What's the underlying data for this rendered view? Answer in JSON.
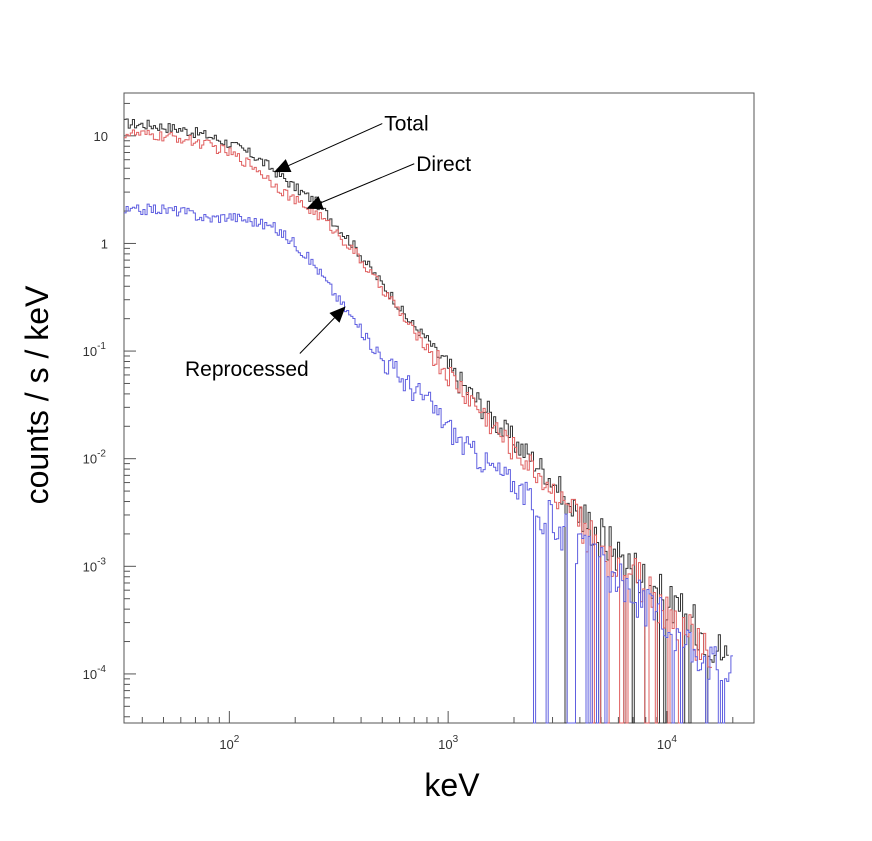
{
  "chart_data": {
    "type": "line",
    "title": "",
    "xlabel": "keV",
    "ylabel": "counts / s / keV",
    "x_scale": "log",
    "y_scale": "log",
    "xlim": [
      33,
      25000
    ],
    "ylim": [
      3.5e-05,
      25
    ],
    "grid": false,
    "x_ticks": [
      {
        "value": 100,
        "base": "10",
        "exp": "2"
      },
      {
        "value": 1000,
        "base": "10",
        "exp": "3"
      },
      {
        "value": 10000,
        "base": "10",
        "exp": "4"
      }
    ],
    "y_ticks": [
      {
        "value": 10,
        "base": "10",
        "exp": ""
      },
      {
        "value": 1,
        "base": "1",
        "exp": ""
      },
      {
        "value": 0.1,
        "base": "10",
        "exp": "-1"
      },
      {
        "value": 0.01,
        "base": "10",
        "exp": "-2"
      },
      {
        "value": 0.001,
        "base": "10",
        "exp": "-3"
      },
      {
        "value": 0.0001,
        "base": "10",
        "exp": "-4"
      }
    ],
    "series": [
      {
        "name": "Total",
        "color": "#333333",
        "x": [
          35,
          45,
          60,
          80,
          100,
          130,
          160,
          200,
          250,
          300,
          380,
          450,
          550,
          650,
          800,
          1000,
          1200,
          1500,
          1800,
          2200,
          2700,
          3300,
          4000,
          5000,
          6000,
          7500,
          9000,
          11000,
          13500,
          16000,
          19000
        ],
        "y": [
          13,
          12.5,
          11.5,
          10,
          8.5,
          6.5,
          4.8,
          3.3,
          2.4,
          1.6,
          0.9,
          0.55,
          0.33,
          0.2,
          0.13,
          0.07,
          0.045,
          0.028,
          0.018,
          0.012,
          0.008,
          0.005,
          0.003,
          0.002,
          0.0013,
          0.0009,
          0.0006,
          0.0004,
          0.00028,
          0.0002,
          0.00014
        ]
      },
      {
        "name": "Direct",
        "color": "#e06060",
        "x": [
          35,
          45,
          60,
          80,
          100,
          130,
          160,
          200,
          250,
          300,
          380,
          450,
          550,
          650,
          800,
          1000,
          1200,
          1500,
          1800,
          2200,
          2700,
          3300,
          4000,
          5000,
          6000,
          7500,
          9000,
          11000,
          13500,
          16000
        ],
        "y": [
          10.5,
          10,
          9.5,
          8.2,
          7,
          5.2,
          3.6,
          2.5,
          1.9,
          1.35,
          0.8,
          0.5,
          0.3,
          0.18,
          0.11,
          0.06,
          0.04,
          0.024,
          0.015,
          0.01,
          0.0065,
          0.004,
          0.0025,
          0.0016,
          0.001,
          0.0007,
          0.00045,
          0.0003,
          0.0002,
          0.00014
        ]
      },
      {
        "name": "Reprocessed",
        "color": "#6060e0",
        "x": [
          35,
          45,
          60,
          80,
          100,
          130,
          160,
          200,
          250,
          300,
          380,
          450,
          550,
          650,
          800,
          1000,
          1200,
          1500,
          1800,
          2200,
          2700,
          3300,
          4000,
          5000,
          6000,
          7500,
          9000,
          11000,
          13500,
          16000,
          20000
        ],
        "y": [
          2.0,
          2.1,
          2.0,
          1.7,
          1.8,
          1.6,
          1.4,
          1.0,
          0.6,
          0.35,
          0.18,
          0.11,
          0.07,
          0.05,
          0.035,
          0.02,
          0.013,
          0.009,
          0.007,
          0.005,
          0.003,
          0.0022,
          0.0014,
          0.001,
          0.0007,
          0.0005,
          0.00035,
          0.00025,
          0.00018,
          0.00013,
          0.0001
        ]
      }
    ],
    "annotations": [
      {
        "text": "Total",
        "tip_x": 160,
        "tip_y": 4.6,
        "from_x": 500,
        "from_y": 13
      },
      {
        "text": "Direct",
        "tip_x": 225,
        "tip_y": 2.1,
        "from_x": 700,
        "from_y": 5.5
      },
      {
        "text": "Reprocessed",
        "tip_x": 340,
        "tip_y": 0.26,
        "from_x": 210,
        "from_y": 0.095
      }
    ]
  }
}
